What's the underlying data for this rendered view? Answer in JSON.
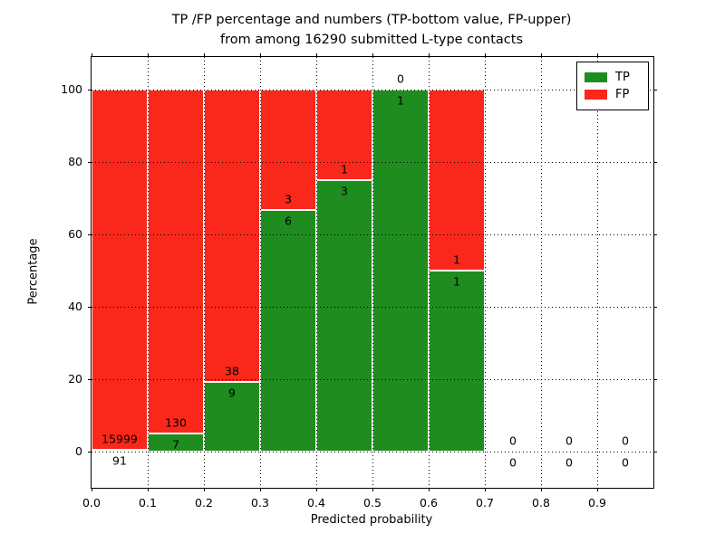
{
  "title": {
    "line1": "TP /FP percentage and numbers (TP-bottom value, FP-upper)",
    "line2": "from among 16290 submitted L-type contacts"
  },
  "chart_data": {
    "type": "bar",
    "stacked": true,
    "normalized_to": "percent (each bin's TP+FP = 100%)",
    "title": "TP /FP percentage and numbers (TP-bottom value, FP-upper) from among 16290 submitted L-type contacts",
    "xlabel": "Predicted probability",
    "ylabel": "Percentage",
    "x_tick_labels": [
      "0.0",
      "0.1",
      "0.2",
      "0.3",
      "0.4",
      "0.5",
      "0.6",
      "0.7",
      "0.8",
      "0.9"
    ],
    "y_ticks": [
      0,
      20,
      40,
      60,
      80,
      100
    ],
    "xlim": [
      0.0,
      1.0
    ],
    "ylim": [
      -10.5,
      109.5
    ],
    "bin_width": 0.1,
    "grid": "dotted black, drawn above bars",
    "categories": [
      "0.0-0.1",
      "0.1-0.2",
      "0.2-0.3",
      "0.3-0.4",
      "0.4-0.5",
      "0.5-0.6",
      "0.6-0.7",
      "0.7-0.8",
      "0.8-0.9",
      "0.9-1.0"
    ],
    "series": [
      {
        "name": "TP",
        "counts": [
          91,
          7,
          9,
          6,
          3,
          1,
          1,
          0,
          0,
          0
        ]
      },
      {
        "name": "FP",
        "counts": [
          15999,
          130,
          38,
          3,
          1,
          0,
          1,
          0,
          0,
          0
        ]
      }
    ],
    "tp_percent": [
      0.57,
      5.11,
      19.15,
      66.67,
      75.0,
      100.0,
      50.0,
      null,
      null,
      null
    ],
    "colors": {
      "tp": "#1e8c1e",
      "fp": "#f9281b"
    },
    "legend": {
      "position": "upper right",
      "entries": [
        {
          "label": "TP",
          "color": "#1e8c1e"
        },
        {
          "label": "FP",
          "color": "#f9281b"
        }
      ]
    }
  }
}
